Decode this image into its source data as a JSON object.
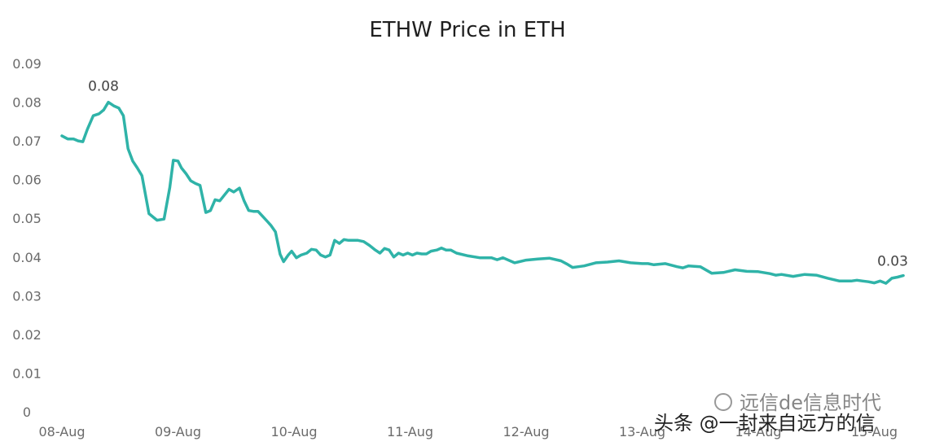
{
  "chart_data": {
    "type": "line",
    "title": "ETHW Price in ETH",
    "xlabel": "",
    "ylabel": "",
    "ylim": [
      0,
      0.09
    ],
    "y_ticks": [
      "0",
      "0.01",
      "0.02",
      "0.03",
      "0.04",
      "0.05",
      "0.06",
      "0.07",
      "0.08",
      "0.09"
    ],
    "x_ticks": [
      "08-Aug",
      "09-Aug",
      "10-Aug",
      "11-Aug",
      "12-Aug",
      "13-Aug",
      "14-Aug",
      "15-Aug"
    ],
    "grid": false,
    "legend": "none",
    "line_color": "#2fb3a8",
    "series": [
      {
        "x": [
          0.0,
          0.05,
          0.1,
          0.14,
          0.18,
          0.22,
          0.27,
          0.32,
          0.36,
          0.4,
          0.45,
          0.49,
          0.53,
          0.57,
          0.61,
          0.65,
          0.69,
          0.75,
          0.82,
          0.88,
          0.93,
          0.96,
          1.0,
          1.03,
          1.07,
          1.11,
          1.15,
          1.19,
          1.24,
          1.28,
          1.32,
          1.36,
          1.4,
          1.44,
          1.48,
          1.53,
          1.57,
          1.61,
          1.65,
          1.69,
          1.73,
          1.77,
          1.8,
          1.84,
          1.88,
          1.91,
          1.95,
          1.98,
          2.02,
          2.06,
          2.11,
          2.15,
          2.19,
          2.23,
          2.27,
          2.31,
          2.35,
          2.39,
          2.43,
          2.47,
          2.5,
          2.55,
          2.6,
          2.65,
          2.7,
          2.74,
          2.78,
          2.82,
          2.86,
          2.9,
          2.94,
          2.98,
          3.02,
          3.06,
          3.1,
          3.14,
          3.18,
          3.23,
          3.27,
          3.31,
          3.35,
          3.4,
          3.5,
          3.6,
          3.7,
          3.75,
          3.8,
          3.9,
          4.0,
          4.1,
          4.2,
          4.3,
          4.35,
          4.4,
          4.45,
          4.5,
          4.6,
          4.7,
          4.8,
          4.9,
          5.0,
          5.05,
          5.1,
          5.2,
          5.3,
          5.35,
          5.4,
          5.5,
          5.6,
          5.7,
          5.8,
          5.9,
          6.0,
          6.1,
          6.15,
          6.2,
          6.3,
          6.4,
          6.5,
          6.6,
          6.7,
          6.8,
          6.85,
          6.9,
          6.95,
          7.0,
          7.05,
          7.1,
          7.15,
          7.2,
          7.25
        ],
        "y": [
          0.0713,
          0.0705,
          0.0705,
          0.07,
          0.0698,
          0.073,
          0.0765,
          0.077,
          0.078,
          0.08,
          0.079,
          0.0785,
          0.0765,
          0.068,
          0.0648,
          0.063,
          0.061,
          0.0512,
          0.0495,
          0.0498,
          0.058,
          0.065,
          0.0648,
          0.063,
          0.0615,
          0.0597,
          0.059,
          0.0585,
          0.0515,
          0.052,
          0.0548,
          0.0545,
          0.056,
          0.0575,
          0.0568,
          0.0578,
          0.0545,
          0.052,
          0.0518,
          0.0518,
          0.0505,
          0.0492,
          0.0482,
          0.0465,
          0.0407,
          0.0388,
          0.0405,
          0.0415,
          0.0398,
          0.0405,
          0.041,
          0.042,
          0.0418,
          0.0405,
          0.04,
          0.0405,
          0.0443,
          0.0435,
          0.0445,
          0.0443,
          0.0443,
          0.0443,
          0.044,
          0.043,
          0.0418,
          0.041,
          0.0422,
          0.0418,
          0.04,
          0.041,
          0.0405,
          0.041,
          0.0405,
          0.041,
          0.0408,
          0.0408,
          0.0415,
          0.0418,
          0.0423,
          0.0418,
          0.0418,
          0.041,
          0.0403,
          0.0398,
          0.0398,
          0.0393,
          0.0398,
          0.0385,
          0.0392,
          0.0395,
          0.0397,
          0.039,
          0.0382,
          0.0373,
          0.0375,
          0.0377,
          0.0385,
          0.0387,
          0.039,
          0.0385,
          0.0383,
          0.0383,
          0.038,
          0.0383,
          0.0375,
          0.0372,
          0.0377,
          0.0375,
          0.0358,
          0.036,
          0.0367,
          0.0363,
          0.0362,
          0.0357,
          0.0353,
          0.0355,
          0.035,
          0.0355,
          0.0353,
          0.0345,
          0.0338,
          0.0338,
          0.034,
          0.0338,
          0.0336,
          0.0333,
          0.0338,
          0.0332,
          0.0345,
          0.0348,
          0.0352
        ]
      }
    ],
    "annotations": [
      {
        "text": "0.08",
        "x": 0.4,
        "y": 0.08
      },
      {
        "text": "0.03",
        "x": 7.2,
        "y": 0.0348
      }
    ]
  },
  "watermark": {
    "left_text": "远信de信息时代",
    "right_text": "头条 @一封来自远方的信"
  }
}
